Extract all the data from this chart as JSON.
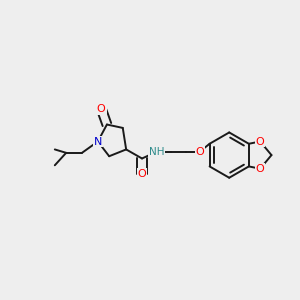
{
  "bg_color": "#eeeeee",
  "atom_colors": {
    "O": "#ff0000",
    "N": "#0000cc",
    "C": "#1a1a1a",
    "H": "#2e8b8b"
  },
  "bond_color": "#1a1a1a",
  "bond_width": 1.4,
  "figsize": [
    3.0,
    3.0
  ],
  "dpi": 100
}
